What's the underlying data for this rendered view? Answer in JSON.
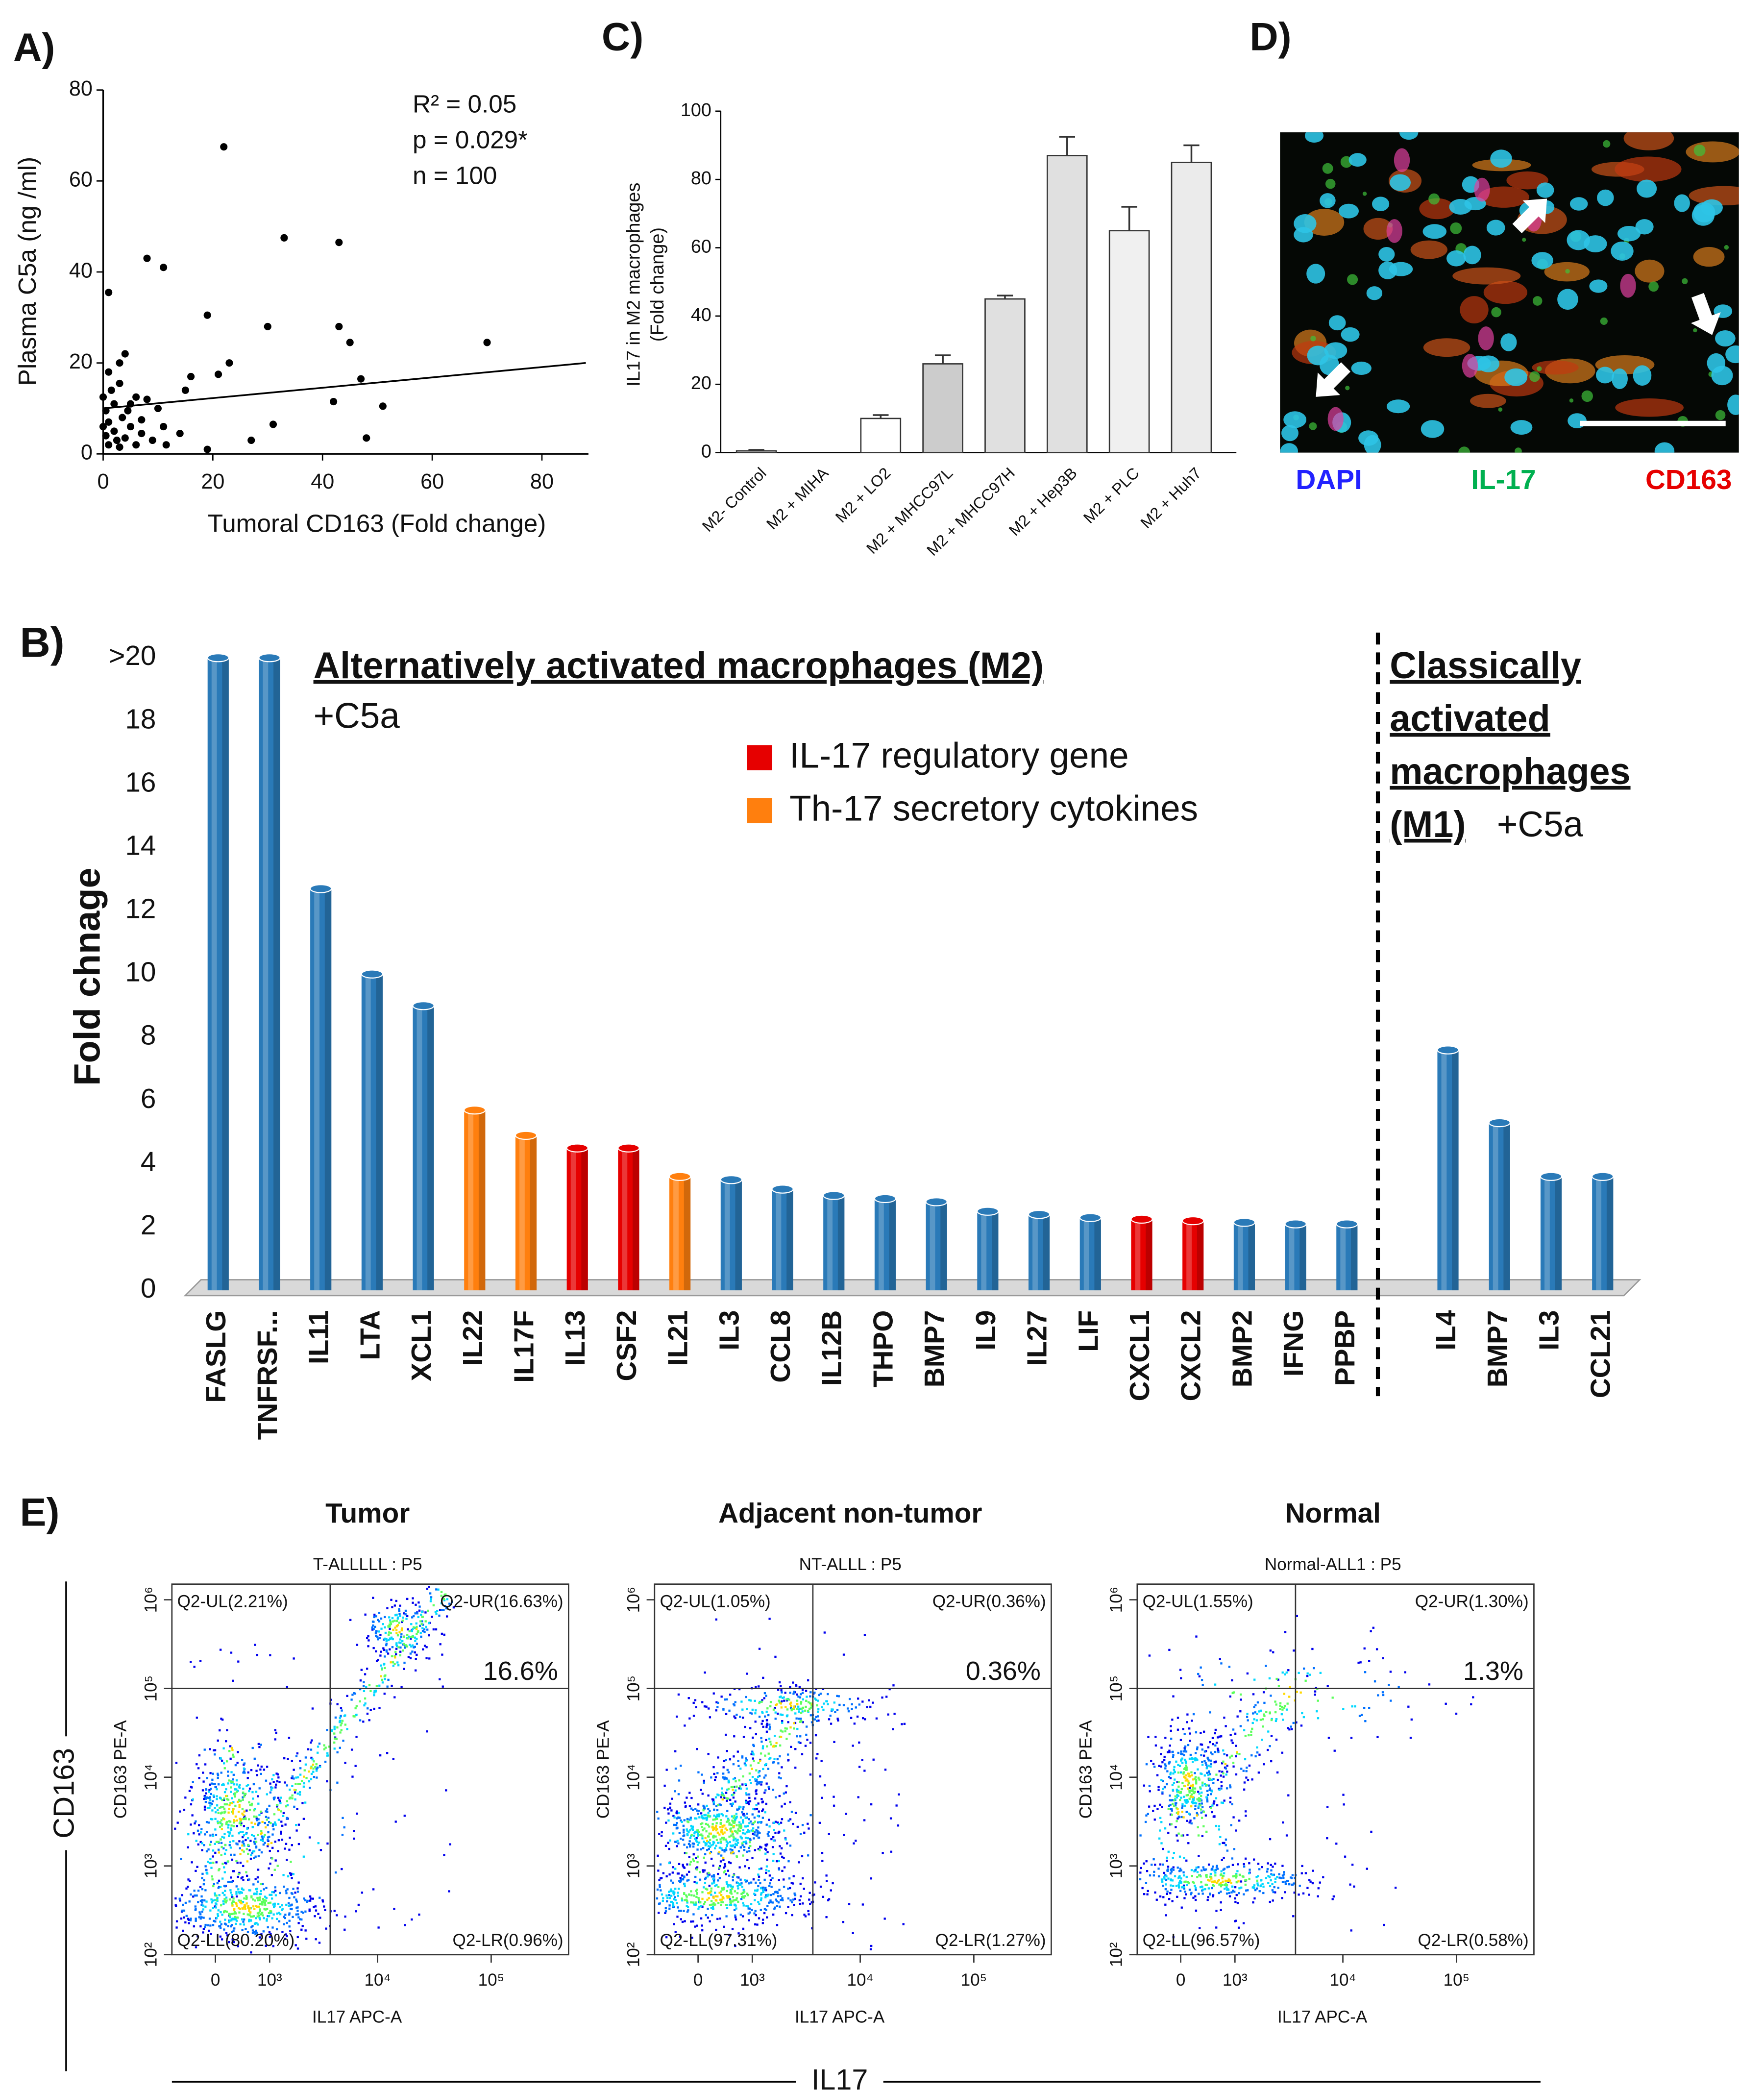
{
  "chart_data": [
    {
      "type": "scatter",
      "panel": "A)",
      "xlabel": "Tumoral CD163 (Fold change)",
      "ylabel": "Plasma C5a (ng /ml)",
      "annotations": [
        "R² = 0.05",
        "p = 0.029*",
        "n = 100"
      ],
      "xlim": [
        0,
        88
      ],
      "xticks": [
        0,
        20,
        40,
        60,
        80
      ],
      "ylim": [
        0,
        80
      ],
      "yticks": [
        0,
        20,
        40,
        60,
        80
      ],
      "color": "#000000",
      "x": [
        22,
        33,
        43,
        8,
        11,
        1,
        19,
        30,
        43,
        45,
        70,
        4,
        23,
        3,
        21,
        47,
        16,
        1,
        15,
        51,
        42,
        31,
        27,
        48,
        19,
        14,
        11,
        7,
        5,
        8,
        10,
        0,
        0.5,
        1,
        2,
        2.5,
        3,
        4,
        5,
        6,
        0.5,
        1,
        2,
        3.5,
        4.5,
        6,
        0,
        1.5,
        3,
        7,
        9,
        11.5
      ],
      "y": [
        67.5,
        47.5,
        46.5,
        43,
        41,
        35.5,
        30.5,
        28,
        28,
        24.5,
        24.5,
        22,
        20,
        20,
        17.5,
        16.5,
        17,
        18,
        14,
        10.5,
        11.5,
        6.5,
        3,
        3.5,
        1,
        4.5,
        6,
        7.5,
        11,
        12,
        10,
        12.5,
        9.5,
        7,
        5,
        3,
        1.5,
        3.5,
        6,
        2,
        4,
        2,
        11,
        8,
        9.5,
        12.5,
        6,
        14,
        15.5,
        4.5,
        3,
        2
      ],
      "trendline": {
        "x": [
          0,
          88
        ],
        "y": [
          10,
          20
        ]
      }
    },
    {
      "type": "bar3d",
      "panel": "B)",
      "ylabel": "Fold chnage",
      "ylim": [
        0,
        20
      ],
      "yticks": [
        0,
        2,
        4,
        6,
        8,
        10,
        12,
        14,
        16,
        18,
        {
          "value": 20,
          "label": ">20"
        }
      ],
      "legend": [
        {
          "name": "IL-17 regulatory gene",
          "color": "#e60000"
        },
        {
          "name": "Th-17 secretory cytokines",
          "color": "#ff7f0e"
        }
      ],
      "groups": [
        {
          "name": [
            "Alternatively activated macrophages (M2)"
          ],
          "note": "+C5a",
          "categories": [
            "FASLG",
            "TNFRSF...",
            "IL11",
            "LTA",
            "XCL1",
            "IL22",
            "IL17F",
            "IL13",
            "CSF2",
            "IL21",
            "IL3",
            "CCL8",
            "IL12B",
            "THPO",
            "BMP7",
            "IL9",
            "IL27",
            "LIF",
            "CXCL1",
            "CXCL2",
            "BMP2",
            "IFNG",
            "PPBP"
          ],
          "values": [
            20,
            20,
            12.7,
            10,
            9,
            5.7,
            4.9,
            4.5,
            4.5,
            3.6,
            3.5,
            3.2,
            3,
            2.9,
            2.8,
            2.5,
            2.4,
            2.3,
            2.25,
            2.2,
            2.15,
            2.1,
            2.1
          ],
          "colors": [
            "#2a7ab8",
            "#2a7ab8",
            "#2a7ab8",
            "#2a7ab8",
            "#2a7ab8",
            "#ff7f0e",
            "#ff7f0e",
            "#e60000",
            "#e60000",
            "#ff7f0e",
            "#2a7ab8",
            "#2a7ab8",
            "#2a7ab8",
            "#2a7ab8",
            "#2a7ab8",
            "#2a7ab8",
            "#2a7ab8",
            "#2a7ab8",
            "#e60000",
            "#e60000",
            "#2a7ab8",
            "#2a7ab8",
            "#2a7ab8"
          ]
        },
        {
          "name": [
            "Classically",
            "activated",
            "macrophages",
            "(M1)"
          ],
          "note": "+C5a",
          "categories": [
            "IL4",
            "BMP7",
            "IL3",
            "CCL21"
          ],
          "values": [
            7.6,
            5.3,
            3.6,
            3.6
          ],
          "colors": [
            "#2a7ab8",
            "#2a7ab8",
            "#2a7ab8",
            "#2a7ab8"
          ]
        }
      ]
    },
    {
      "type": "bar",
      "panel": "C)",
      "ylabel": [
        "IL17 in M2 macrophages",
        "(Fold change)"
      ],
      "categories": [
        "M2- Control",
        "M2 + MIHA",
        "M2 + LO2",
        "M2 + MHCC97L",
        "M2 + MHCC97H",
        "M2 + Hep3B",
        "M2 + PLC",
        "M2 + Huh7"
      ],
      "values": [
        0.5,
        0,
        10,
        26,
        45,
        87,
        65,
        85
      ],
      "errors": [
        0.3,
        0,
        1,
        2.5,
        1,
        5.5,
        7,
        5
      ],
      "colors": [
        "#ffffff",
        "#ffffff",
        "#ffffff",
        "#cccccc",
        "#e0e0e0",
        "#e0e0e0",
        "#f0f0f0",
        "#ebebeb"
      ],
      "ylim": [
        0,
        100
      ],
      "yticks": [
        0,
        20,
        40,
        60,
        80,
        100
      ]
    },
    {
      "type": "image",
      "panel": "D)",
      "labels": [
        {
          "text": "DAPI",
          "color": "#2222ff"
        },
        {
          "text": "IL-17",
          "color": "#00b050"
        },
        {
          "text": "CD163",
          "color": "#e60000"
        }
      ]
    },
    {
      "type": "flow",
      "panel": "E)",
      "x_title": "IL17",
      "y_title": "CD163",
      "xlabel": "IL17 APC-A",
      "ylabel": "CD163 PE-A",
      "xscale": "biexponential",
      "yscale": "log",
      "xlim": [
        -750,
        480000
      ],
      "ylim": [
        100,
        1500000
      ],
      "xticks": [
        0,
        {
          "value": 1000,
          "label": "10³"
        },
        {
          "value": 10000,
          "label": "10⁴"
        },
        {
          "value": 100000,
          "label": "10⁵"
        }
      ],
      "yticks": [
        {
          "value": 100,
          "label": "10²"
        },
        {
          "value": 1000,
          "label": "10³"
        },
        {
          "value": 10000,
          "label": "10⁴"
        },
        {
          "value": 100000,
          "label": "10⁵"
        },
        {
          "value": 1000000,
          "label": "10⁶"
        }
      ],
      "gate": {
        "x": 3800,
        "y": 100000
      },
      "plots": [
        {
          "title": "Tumor",
          "subtitle": "T-ALLLLL : P5",
          "quadrants": [
            "Q2-UL(2.21%)",
            "Q2-UR(16.63%)",
            "Q2-LL(80.20%)",
            "Q2-LR(0.96%)"
          ],
          "highlight": "16.6%"
        },
        {
          "title": "Adjacent non-tumor",
          "subtitle": "NT-ALLL : P5",
          "quadrants": [
            "Q2-UL(1.05%)",
            "Q2-UR(0.36%)",
            "Q2-LL(97.31%)",
            "Q2-LR(1.27%)"
          ],
          "highlight": "0.36%"
        },
        {
          "title": "Normal",
          "subtitle": "Normal-ALL1 : P5",
          "quadrants": [
            "Q2-UL(1.55%)",
            "Q2-UR(1.30%)",
            "Q2-LL(96.57%)",
            "Q2-LR(0.58%)"
          ],
          "highlight": "1.3%"
        }
      ]
    }
  ]
}
